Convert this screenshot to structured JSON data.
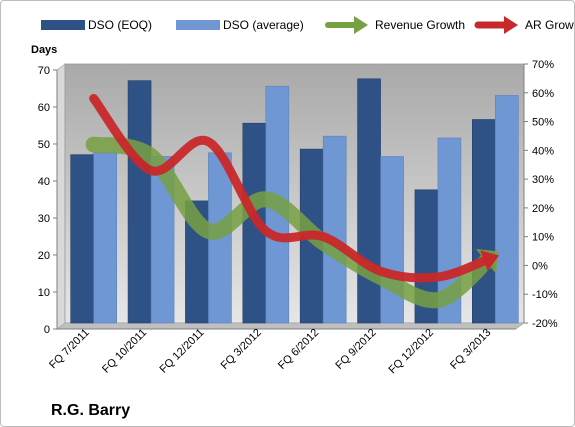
{
  "chart_data": {
    "type": "bar",
    "categories": [
      "FQ 7/2011",
      "FQ 10/2011",
      "FQ 12/2011",
      "FQ 3/2012",
      "FQ 6/2012",
      "FQ 9/2012",
      "FQ 12/2012",
      "FQ 3/2013"
    ],
    "series": [
      {
        "name": "DSO (EOQ)",
        "kind": "bar",
        "axis": "left",
        "color": "#2e5286",
        "values": [
          45.5,
          65.5,
          33,
          54,
          47,
          66,
          36,
          55
        ]
      },
      {
        "name": "DSO (average)",
        "kind": "bar",
        "axis": "left",
        "color": "#6f97d3",
        "values": [
          46,
          45,
          46,
          64,
          50.5,
          45,
          50,
          61.5
        ]
      },
      {
        "name": "Revenue Growth",
        "kind": "arrow",
        "axis": "right",
        "color": "#77a042",
        "values": [
          0.42,
          0.38,
          0.12,
          0.23,
          0.08,
          -0.04,
          -0.12,
          0.04
        ]
      },
      {
        "name": "AR Growth",
        "kind": "arrow",
        "axis": "right",
        "color": "#c8282a",
        "values": [
          0.58,
          0.33,
          0.43,
          0.12,
          0.1,
          -0.02,
          -0.04,
          0.03
        ]
      }
    ],
    "ylabel": "Days",
    "ylim": [
      0,
      70
    ],
    "y_ticks": [
      "0",
      "10",
      "20",
      "30",
      "40",
      "50",
      "60",
      "70"
    ],
    "y2lim": [
      -0.2,
      0.7
    ],
    "y2_ticks": [
      "-20%",
      "-10%",
      "0%",
      "10%",
      "20%",
      "30%",
      "40%",
      "50%",
      "60%",
      "70%"
    ],
    "legend_position": "top",
    "grid": false,
    "plot_background": "#c8c8c8"
  },
  "company_name": "R.G. Barry"
}
